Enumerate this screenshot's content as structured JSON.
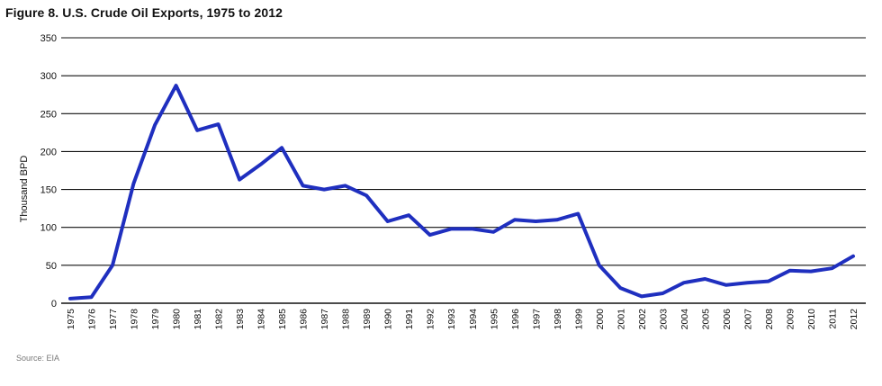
{
  "chart_data": {
    "type": "line",
    "title": "Figure 8. U.S. Crude Oil Exports, 1975 to 2012",
    "xlabel": "",
    "ylabel": "Thousand BPD",
    "ylim": [
      0,
      350
    ],
    "yticks": [
      0,
      50,
      100,
      150,
      200,
      250,
      300,
      350
    ],
    "grid": true,
    "legend": "none",
    "categories": [
      "1975",
      "1976",
      "1977",
      "1978",
      "1979",
      "1980",
      "1981",
      "1982",
      "1983",
      "1984",
      "1985",
      "1986",
      "1987",
      "1988",
      "1989",
      "1990",
      "1991",
      "1992",
      "1993",
      "1994",
      "1995",
      "1996",
      "1997",
      "1998",
      "1999",
      "2000",
      "2001",
      "2002",
      "2003",
      "2004",
      "2005",
      "2006",
      "2007",
      "2008",
      "2009",
      "2010",
      "2011",
      "2012"
    ],
    "series": [
      {
        "name": "",
        "color": "#1f2fbf",
        "values": [
          6,
          8,
          50,
          158,
          235,
          287,
          228,
          236,
          163,
          183,
          205,
          155,
          150,
          155,
          142,
          108,
          116,
          90,
          98,
          98,
          94,
          110,
          108,
          110,
          118,
          50,
          20,
          9,
          13,
          27,
          32,
          24,
          27,
          29,
          43,
          42,
          46,
          62
        ]
      }
    ],
    "source": "Source: EIA"
  }
}
